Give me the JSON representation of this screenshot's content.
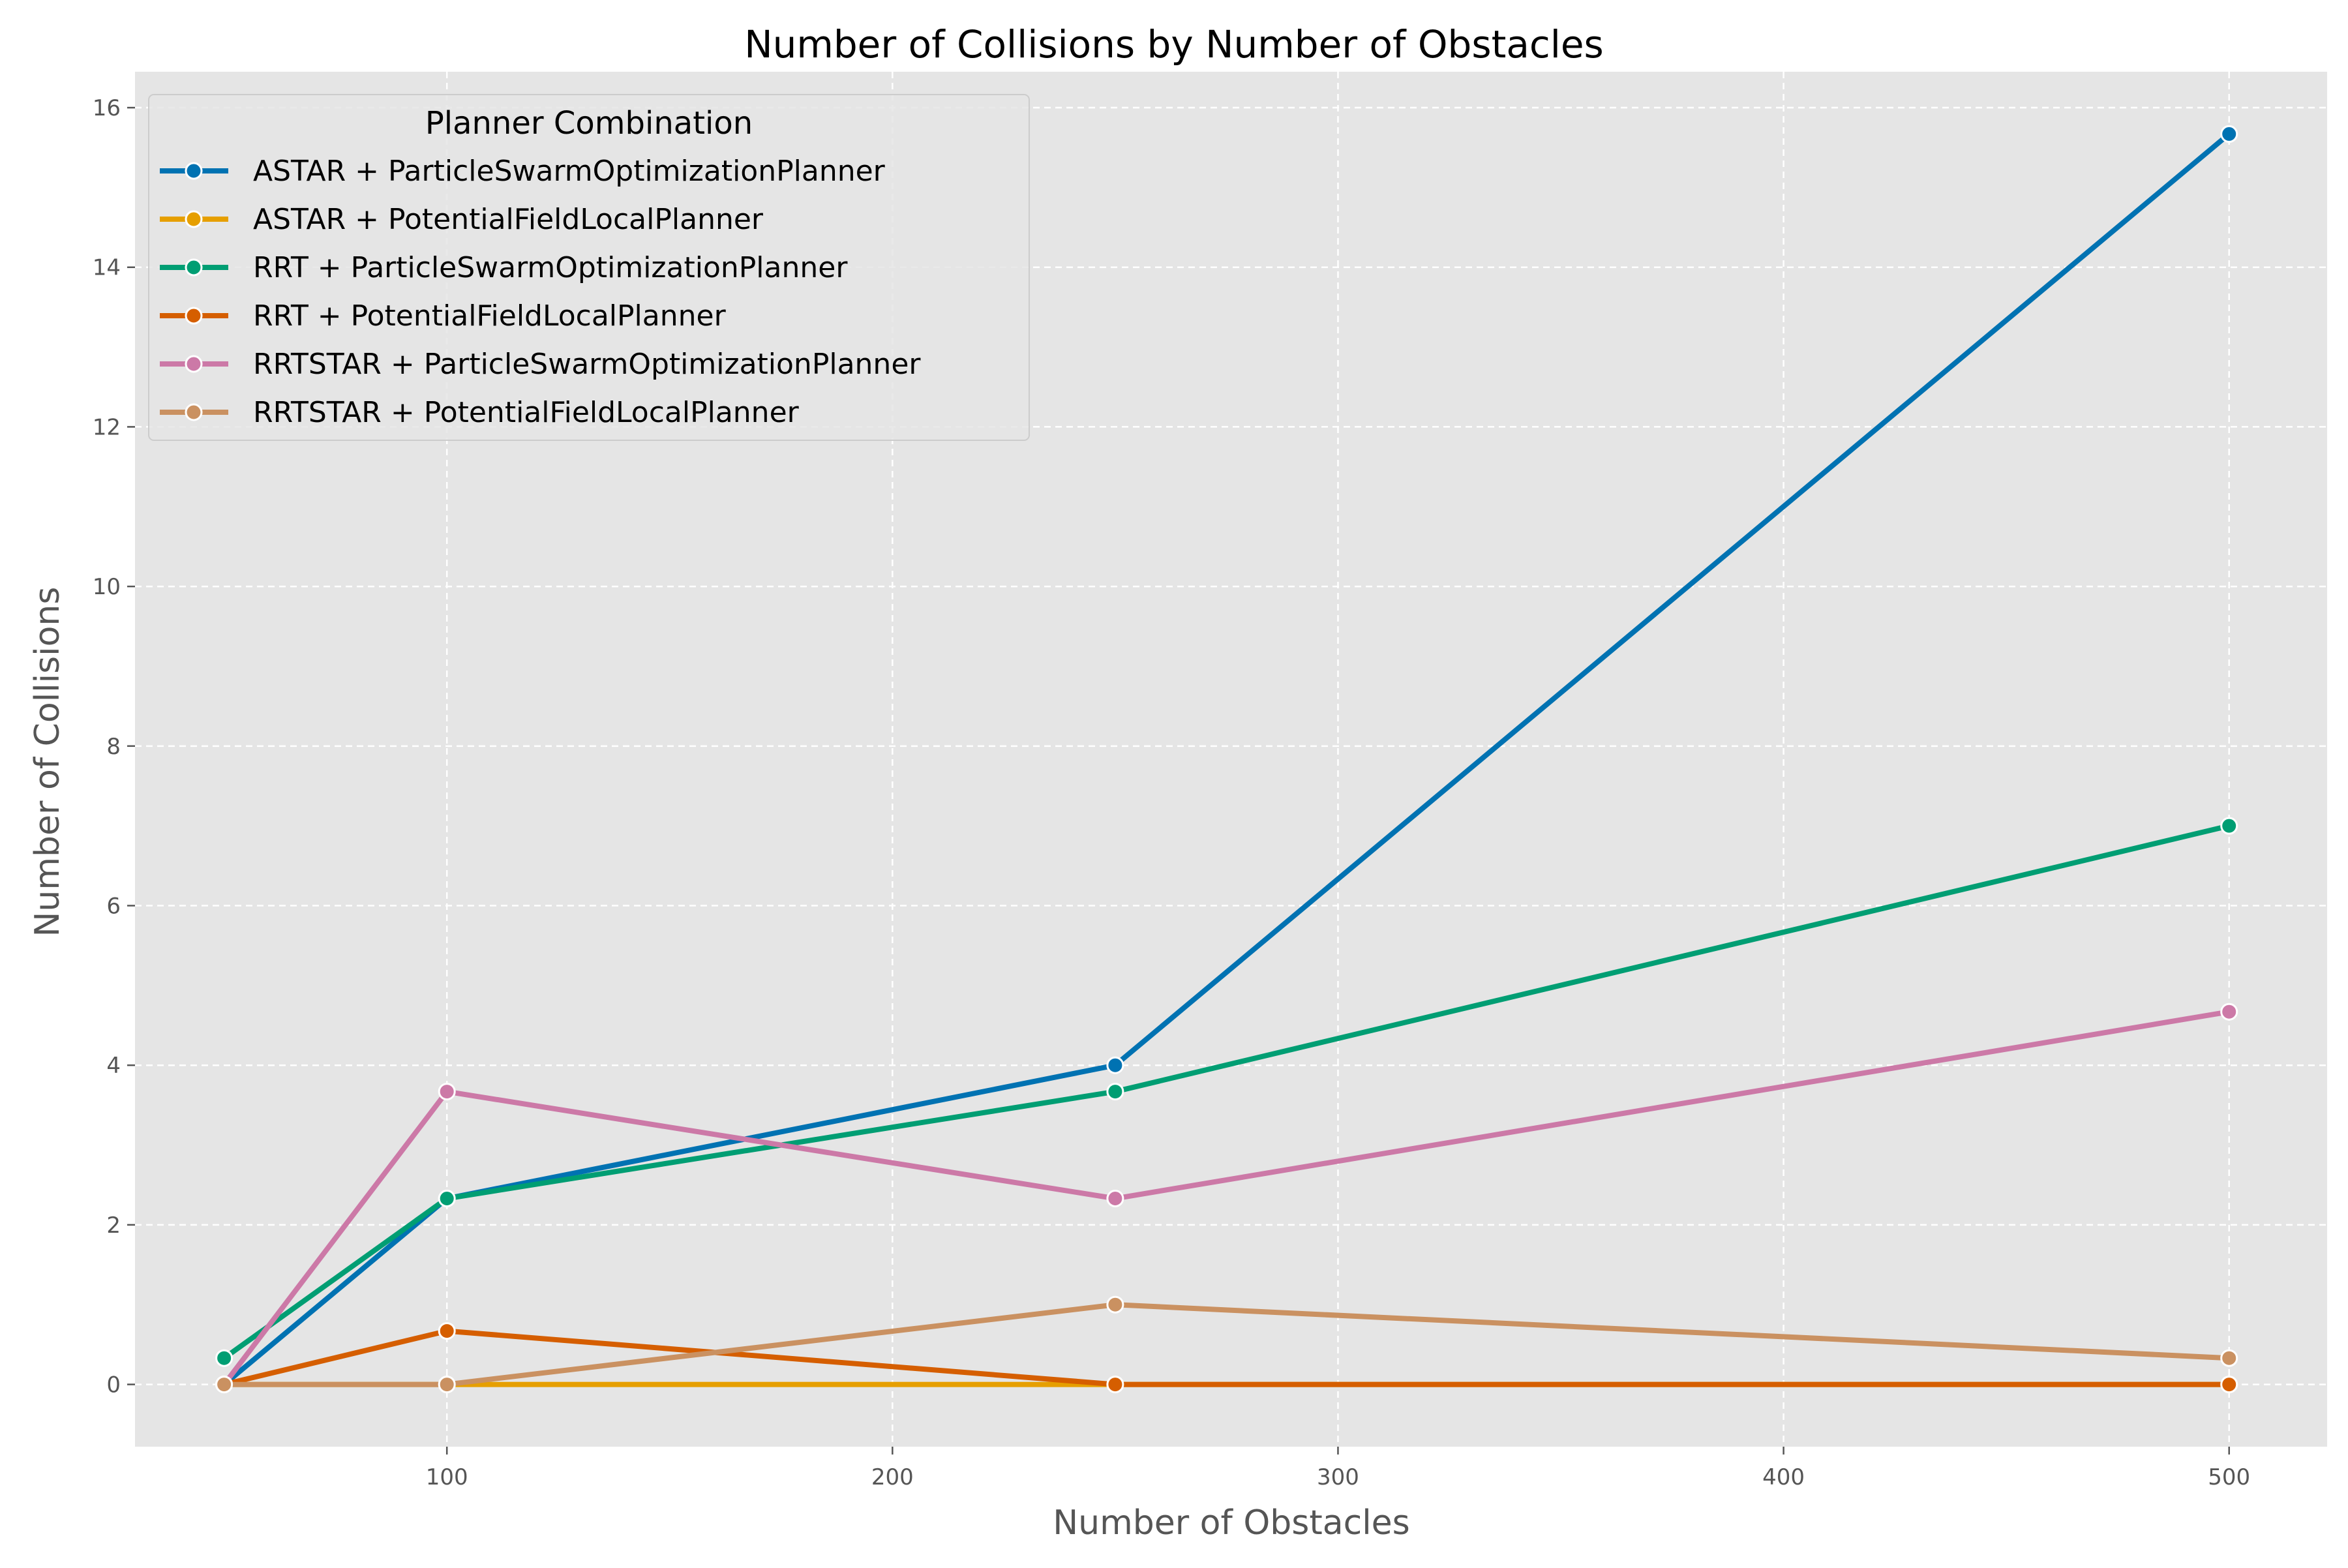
{
  "chart_data": {
    "type": "line",
    "title": "Number of Collisions by Number of Obstacles",
    "xlabel": "Number of Obstacles",
    "ylabel": "Number of Collisions",
    "xlim": [
      30,
      522
    ],
    "ylim": [
      -0.78,
      16.45
    ],
    "xticks": [
      100,
      200,
      300,
      400,
      500
    ],
    "yticks": [
      0,
      2,
      4,
      6,
      8,
      10,
      12,
      14,
      16
    ],
    "grid": true,
    "legend": {
      "title": "Planner Combination",
      "placement": "top-left"
    },
    "x": [
      50,
      100,
      250,
      500
    ],
    "series": [
      {
        "name": "ASTAR + ParticleSwarmOptimizationPlanner",
        "color": "#0072B2",
        "values": [
          0,
          2.33,
          4.0,
          15.67
        ]
      },
      {
        "name": "ASTAR + PotentialFieldLocalPlanner",
        "color": "#E69F00",
        "values": [
          0,
          0,
          0,
          0
        ]
      },
      {
        "name": "RRT + ParticleSwarmOptimizationPlanner",
        "color": "#009E73",
        "values": [
          0.33,
          2.33,
          3.67,
          7.0
        ]
      },
      {
        "name": "RRT + PotentialFieldLocalPlanner",
        "color": "#D55E00",
        "values": [
          0,
          0.67,
          0,
          0
        ]
      },
      {
        "name": "RRTSTAR + ParticleSwarmOptimizationPlanner",
        "color": "#CC79A7",
        "values": [
          0,
          3.67,
          2.33,
          4.67
        ]
      },
      {
        "name": "RRTSTAR + PotentialFieldLocalPlanner",
        "color": "#CA9161",
        "values": [
          0,
          0,
          1.0,
          0.33
        ]
      }
    ]
  }
}
